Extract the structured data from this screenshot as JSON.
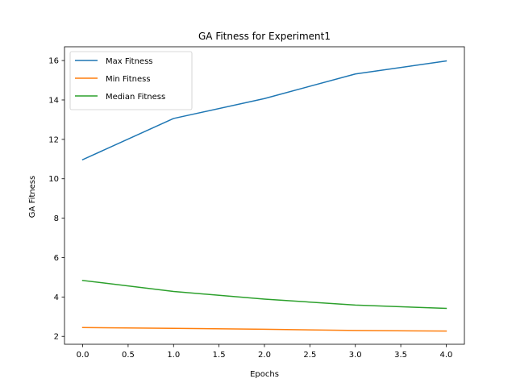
{
  "chart_data": {
    "type": "line",
    "title": "GA Fitness for Experiment1",
    "xlabel": "Epochs",
    "ylabel": "GA Fitness",
    "x": [
      0,
      1,
      2,
      3,
      4
    ],
    "xlim": [
      -0.2,
      4.2
    ],
    "ylim": [
      1.6,
      16.7
    ],
    "xticks": [
      0.0,
      0.5,
      1.0,
      1.5,
      2.0,
      2.5,
      3.0,
      3.5,
      4.0
    ],
    "xtick_labels": [
      "0.0",
      "0.5",
      "1.0",
      "1.5",
      "2.0",
      "2.5",
      "3.0",
      "3.5",
      "4.0"
    ],
    "yticks": [
      2,
      4,
      6,
      8,
      10,
      12,
      14,
      16
    ],
    "ytick_labels": [
      "2",
      "4",
      "6",
      "8",
      "10",
      "12",
      "14",
      "16"
    ],
    "grid": false,
    "legend_position": "top-left",
    "series": [
      {
        "name": "Max Fitness",
        "color": "#1f77b4",
        "values": [
          10.97,
          13.06,
          14.07,
          15.32,
          15.98
        ]
      },
      {
        "name": "Min Fitness",
        "color": "#ff7f0e",
        "values": [
          2.45,
          2.41,
          2.36,
          2.3,
          2.27
        ]
      },
      {
        "name": "Median Fitness",
        "color": "#2ca02c",
        "values": [
          4.84,
          4.28,
          3.89,
          3.59,
          3.42
        ]
      }
    ]
  }
}
